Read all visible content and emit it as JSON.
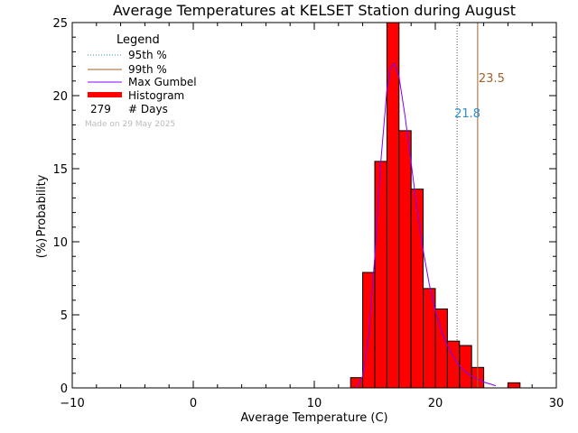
{
  "chart_data": {
    "type": "bar",
    "title": "Average Temperatures at KELSET Station during August",
    "xlabel": "Average Temperature (C)",
    "ylabel_line1": "Probability",
    "ylabel_line2": "(%)",
    "xlim": [
      -10,
      30
    ],
    "ylim": [
      0,
      25
    ],
    "x_ticks": [
      -10,
      0,
      10,
      20,
      30
    ],
    "x_tick_labels": [
      "−10",
      "0",
      "10",
      "20",
      "30"
    ],
    "y_ticks": [
      0,
      5,
      10,
      15,
      20,
      25
    ],
    "y_tick_labels": [
      "0",
      "5",
      "10",
      "15",
      "20",
      "25"
    ],
    "histogram": {
      "bin_width": 1,
      "bins": [
        {
          "x0": 13,
          "value": 0.7
        },
        {
          "x0": 14,
          "value": 7.9
        },
        {
          "x0": 15,
          "value": 15.5
        },
        {
          "x0": 16,
          "value": 25.0
        },
        {
          "x0": 17,
          "value": 17.6
        },
        {
          "x0": 18,
          "value": 13.6
        },
        {
          "x0": 19,
          "value": 6.8
        },
        {
          "x0": 20,
          "value": 5.4
        },
        {
          "x0": 21,
          "value": 3.2
        },
        {
          "x0": 22,
          "value": 2.9
        },
        {
          "x0": 23,
          "value": 1.4
        },
        {
          "x0": 24,
          "value": 0
        },
        {
          "x0": 25,
          "value": 0
        },
        {
          "x0": 26,
          "value": 0.35
        }
      ],
      "color": "#ff0000"
    },
    "gumbel_curve": {
      "x": [
        13.5,
        14.0,
        14.5,
        15.0,
        15.5,
        16.0,
        16.3,
        16.6,
        17.0,
        17.5,
        18.0,
        18.5,
        19.0,
        19.5,
        20.0,
        20.5,
        21.0,
        21.5,
        22.0,
        22.5,
        23.0,
        24.0,
        25.0
      ],
      "y": [
        0.05,
        0.8,
        3.6,
        9.0,
        15.5,
        20.4,
        21.9,
        22.2,
        21.3,
        18.6,
        15.4,
        12.2,
        9.4,
        7.1,
        5.3,
        3.9,
        2.9,
        2.1,
        1.5,
        1.1,
        0.8,
        0.4,
        0.15
      ],
      "color": "#8000ff"
    },
    "percentile_95": {
      "value": 21.8,
      "label": "21.8",
      "color": "#2a8fd0"
    },
    "percentile_99": {
      "value": 23.5,
      "label": "23.5",
      "color": "#a0602a"
    },
    "legend": {
      "title": "Legend",
      "items": [
        {
          "label": "95th %",
          "style": "dotted",
          "color": "#2a8fd0"
        },
        {
          "label": "99th %",
          "style": "solid",
          "color": "#a0602a"
        },
        {
          "label": "Max Gumbel",
          "style": "solid",
          "color": "#8000ff"
        },
        {
          "label": "Histogram",
          "style": "thick",
          "color": "#ff0000"
        }
      ],
      "days_count": "279",
      "days_label": "# Days",
      "made_on": "Made on 29 May 2025"
    }
  }
}
